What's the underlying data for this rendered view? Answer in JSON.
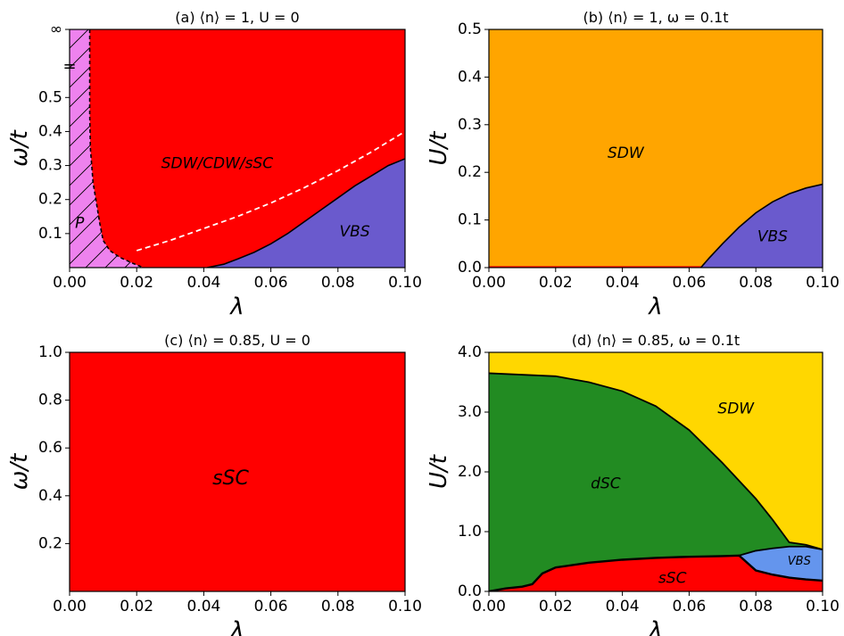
{
  "colors": {
    "red": "#ff0000",
    "violet": "#ee82ee",
    "slateblue": "#6a5acd",
    "orange": "#ffa500",
    "gold": "#ffd700",
    "forestgreen": "#228b22",
    "cornflowerblue": "#6495ed",
    "white": "#ffffff",
    "black": "#000000"
  },
  "chart_data": [
    {
      "id": "a",
      "type": "area",
      "title": "(a) ⟨n⟩ = 1, U = 0",
      "xlabel": "λ",
      "ylabel": "ω/t",
      "xlim": [
        0,
        0.1
      ],
      "ylim": [
        0,
        0.7
      ],
      "x_ticks": [
        0,
        0.02,
        0.04,
        0.06,
        0.08,
        0.1
      ],
      "x_tick_labels": [
        "0.00",
        "0.02",
        "0.04",
        "0.06",
        "0.08",
        "0.10"
      ],
      "y_ticks": [
        0.1,
        0.2,
        0.3,
        0.4,
        0.5,
        0.7
      ],
      "y_tick_labels": [
        "0.1",
        "0.2",
        "0.3",
        "0.4",
        "0.5",
        "∞"
      ],
      "axis_break": {
        "y": 0.59,
        "symbol": "="
      },
      "background_region": "red",
      "regions": [
        {
          "label": "P",
          "color": "violet",
          "hatch": true,
          "label_at": [
            0.003,
            0.13
          ],
          "boundary": {
            "x": [
              0.006,
              0.006,
              0.0062,
              0.0066,
              0.007,
              0.008,
              0.009,
              0.01,
              0.012,
              0.015,
              0.019,
              0.022
            ],
            "y": [
              0.7,
              0.45,
              0.35,
              0.3,
              0.25,
              0.19,
              0.13,
              0.08,
              0.05,
              0.03,
              0.012,
              0.0
            ]
          }
        },
        {
          "label": "VBS",
          "color": "slateblue",
          "label_at": [
            0.085,
            0.105
          ],
          "boundary": {
            "x": [
              0.041,
              0.046,
              0.05,
              0.055,
              0.06,
              0.065,
              0.07,
              0.075,
              0.08,
              0.085,
              0.09,
              0.095,
              0.1
            ],
            "y": [
              0.0,
              0.01,
              0.025,
              0.045,
              0.07,
              0.1,
              0.135,
              0.17,
              0.205,
              0.24,
              0.27,
              0.3,
              0.32
            ]
          }
        }
      ],
      "background_label": {
        "text": "SDW/CDW/sSC",
        "at": [
          0.044,
          0.305
        ]
      },
      "dashed_line": {
        "color": "white",
        "x": [
          0.02,
          0.03,
          0.04,
          0.05,
          0.06,
          0.07,
          0.08,
          0.09,
          0.1
        ],
        "y": [
          0.05,
          0.08,
          0.115,
          0.15,
          0.19,
          0.235,
          0.285,
          0.34,
          0.4
        ]
      }
    },
    {
      "id": "b",
      "type": "area",
      "title": "(b) ⟨n⟩ = 1, ω = 0.1t",
      "xlabel": "λ",
      "ylabel": "U/t",
      "xlim": [
        0,
        0.1
      ],
      "ylim": [
        0,
        0.5
      ],
      "x_ticks": [
        0,
        0.02,
        0.04,
        0.06,
        0.08,
        0.1
      ],
      "x_tick_labels": [
        "0.00",
        "0.02",
        "0.04",
        "0.06",
        "0.08",
        "0.10"
      ],
      "y_ticks": [
        0,
        0.1,
        0.2,
        0.3,
        0.4,
        0.5
      ],
      "y_tick_labels": [
        "0.0",
        "0.1",
        "0.2",
        "0.3",
        "0.4",
        "0.5"
      ],
      "background_region": "orange",
      "background_label": {
        "text": "SDW",
        "at": [
          0.041,
          0.24
        ]
      },
      "regions": [
        {
          "label": "",
          "color": "red",
          "boundary": {
            "x": [
              0,
              0.0635
            ],
            "y": [
              0.003,
              0.003
            ]
          }
        },
        {
          "label": "VBS",
          "color": "slateblue",
          "label_at": [
            0.085,
            0.065
          ],
          "boundary": {
            "x": [
              0.0635,
              0.066,
              0.07,
              0.075,
              0.08,
              0.085,
              0.09,
              0.095,
              0.1
            ],
            "y": [
              0.0,
              0.02,
              0.05,
              0.085,
              0.115,
              0.138,
              0.155,
              0.167,
              0.175
            ]
          }
        }
      ]
    },
    {
      "id": "c",
      "type": "area",
      "title": "(c) ⟨n⟩ = 0.85, U = 0",
      "xlabel": "λ",
      "ylabel": "ω/t",
      "xlim": [
        0,
        0.1
      ],
      "ylim": [
        0,
        1.0
      ],
      "x_ticks": [
        0,
        0.02,
        0.04,
        0.06,
        0.08,
        0.1
      ],
      "x_tick_labels": [
        "0.00",
        "0.02",
        "0.04",
        "0.06",
        "0.08",
        "0.10"
      ],
      "y_ticks": [
        0.2,
        0.4,
        0.6,
        0.8,
        1.0
      ],
      "y_tick_labels": [
        "0.2",
        "0.4",
        "0.6",
        "0.8",
        "1.0"
      ],
      "background_region": "red",
      "background_label": {
        "text": "sSC",
        "at": [
          0.048,
          0.47
        ]
      },
      "regions": []
    },
    {
      "id": "d",
      "type": "area",
      "title": "(d) ⟨n⟩ = 0.85, ω = 0.1t",
      "xlabel": "λ",
      "ylabel": "U/t",
      "xlim": [
        0,
        0.1
      ],
      "ylim": [
        0,
        4.0
      ],
      "x_ticks": [
        0,
        0.02,
        0.04,
        0.06,
        0.08,
        0.1
      ],
      "x_tick_labels": [
        "0.00",
        "0.02",
        "0.04",
        "0.06",
        "0.08",
        "0.10"
      ],
      "y_ticks": [
        0,
        1,
        2,
        3,
        4
      ],
      "y_tick_labels": [
        "0.0",
        "1.0",
        "2.0",
        "3.0",
        "4.0"
      ],
      "background_region": "gold",
      "background_label": {
        "text": "SDW",
        "at": [
          0.074,
          3.05
        ]
      },
      "regions": [
        {
          "label": "dSC",
          "color": "forestgreen",
          "label_at": [
            0.035,
            1.8
          ],
          "boundary": {
            "x": [
              0,
              0.02,
              0.03,
              0.04,
              0.05,
              0.06,
              0.07,
              0.08,
              0.085,
              0.09,
              0.095,
              0.1
            ],
            "y": [
              3.65,
              3.6,
              3.5,
              3.35,
              3.1,
              2.7,
              2.15,
              1.55,
              1.2,
              0.82,
              0.78,
              0.7
            ]
          }
        },
        {
          "label": "VBS",
          "color": "cornflowerblue",
          "label_at": [
            0.093,
            0.5
          ],
          "boundary": {
            "x": [
              0.075,
              0.08,
              0.085,
              0.09,
              0.095,
              0.1
            ],
            "y": [
              0.6,
              0.68,
              0.72,
              0.75,
              0.75,
              0.7
            ]
          }
        },
        {
          "label": "sSC",
          "color": "red",
          "label_at": [
            0.055,
            0.22
          ],
          "boundary": {
            "x": [
              0,
              0.005,
              0.01,
              0.013,
              0.016,
              0.02,
              0.03,
              0.04,
              0.05,
              0.06,
              0.07,
              0.075,
              0.08,
              0.085,
              0.09,
              0.095,
              0.1
            ],
            "y": [
              0.0,
              0.05,
              0.08,
              0.12,
              0.3,
              0.4,
              0.48,
              0.53,
              0.56,
              0.58,
              0.59,
              0.6,
              0.35,
              0.28,
              0.23,
              0.2,
              0.18
            ]
          }
        }
      ]
    }
  ]
}
